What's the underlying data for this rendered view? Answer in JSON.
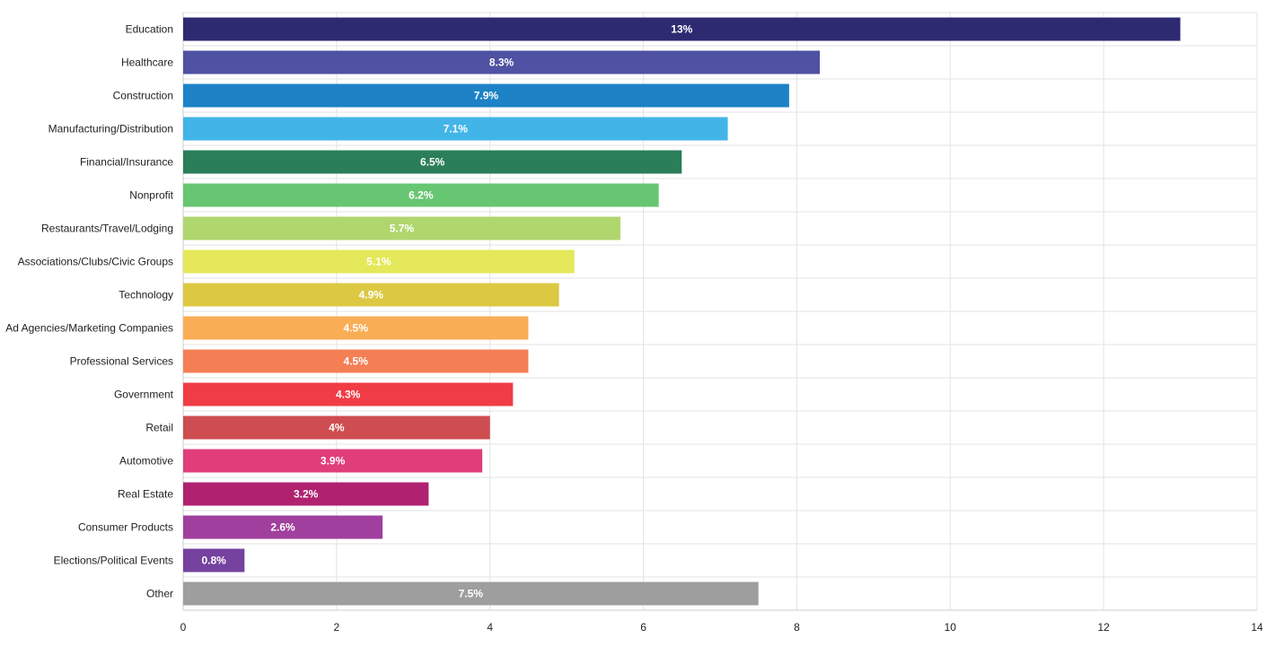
{
  "chart_data": {
    "type": "bar",
    "orientation": "horizontal",
    "title": "",
    "xlabel": "",
    "ylabel": "",
    "xlim": [
      0,
      14
    ],
    "x_ticks": [
      0,
      2,
      4,
      6,
      8,
      10,
      12,
      14
    ],
    "grid": true,
    "legend": "none",
    "value_suffix": "%",
    "categories": [
      "Education",
      "Healthcare",
      "Construction",
      "Manufacturing/Distribution",
      "Financial/Insurance",
      "Nonprofit",
      "Restaurants/Travel/Lodging",
      "Associations/Clubs/Civic Groups",
      "Technology",
      "Ad Agencies/Marketing Companies",
      "Professional Services",
      "Government",
      "Retail",
      "Automotive",
      "Real Estate",
      "Consumer Products",
      "Elections/Political Events",
      "Other"
    ],
    "values": [
      13,
      8.3,
      7.9,
      7.1,
      6.5,
      6.2,
      5.7,
      5.1,
      4.9,
      4.5,
      4.5,
      4.3,
      4,
      3.9,
      3.2,
      2.6,
      0.8,
      7.5
    ],
    "colors": [
      "#2e2a72",
      "#4f51a3",
      "#1d82c6",
      "#42b4e8",
      "#2a7e58",
      "#67c671",
      "#b0d66e",
      "#e4e85a",
      "#dcc843",
      "#f9ad55",
      "#f47f55",
      "#f03d45",
      "#cd4d50",
      "#e03d7b",
      "#b02270",
      "#a03f9d",
      "#7542a0",
      "#9e9e9e"
    ]
  }
}
